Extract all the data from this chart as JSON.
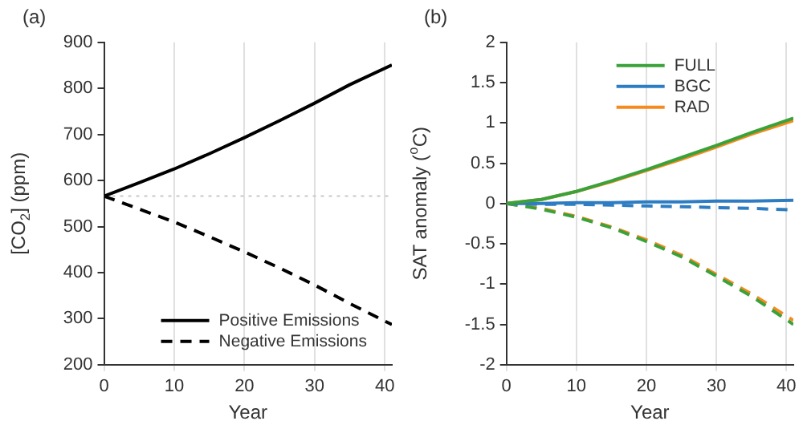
{
  "chart_data": [
    {
      "type": "line",
      "title": "(a)",
      "xlabel": "Year",
      "ylabel": "[CO$_{2}$] (ppm)",
      "x": [
        0,
        5,
        10,
        15,
        20,
        25,
        30,
        35,
        41
      ],
      "xlim": [
        0,
        41
      ],
      "xticks": [
        0,
        10,
        20,
        30,
        40
      ],
      "ylim": [
        200,
        900
      ],
      "yticks": [
        200,
        300,
        400,
        500,
        600,
        700,
        800,
        900
      ],
      "grid": "x",
      "legend": "bottom",
      "marker": "none",
      "series": [
        {
          "name": "Positive Emissions",
          "color": "#000000",
          "line_style": "solid",
          "values": [
            566,
            595,
            625,
            658,
            693,
            730,
            768,
            808,
            851
          ]
        },
        {
          "name": "Negative Emissions",
          "color": "#000000",
          "line_style": "dashed",
          "values": [
            566,
            538,
            510,
            478,
            445,
            410,
            373,
            333,
            287
          ]
        }
      ],
      "ref_lines": [
        {
          "axis": "y",
          "value": 566,
          "color": "#c8c8c8",
          "line_style": "dotted"
        }
      ]
    },
    {
      "type": "line",
      "title": "(b)",
      "xlabel": "Year",
      "ylabel": "SAT anomaly ($^{o}$C)",
      "x": [
        0,
        5,
        10,
        15,
        20,
        25,
        30,
        35,
        41
      ],
      "xlim": [
        0,
        41
      ],
      "xticks": [
        0,
        10,
        20,
        30,
        40
      ],
      "ylim": [
        -2,
        2
      ],
      "yticks": [
        -2,
        -1.5,
        -1,
        -0.5,
        0,
        0.5,
        1,
        1.5,
        2
      ],
      "grid": "x",
      "legend": "top",
      "marker": "none",
      "series": [
        {
          "name": "FULL",
          "color": "#3aa23a",
          "line_style": "solid",
          "values": [
            0,
            0.05,
            0.15,
            0.28,
            0.42,
            0.57,
            0.72,
            0.88,
            1.06
          ]
        },
        {
          "name": "BGC",
          "color": "#2e7dc2",
          "line_style": "solid",
          "values": [
            0,
            0.0,
            0.01,
            0.01,
            0.02,
            0.02,
            0.03,
            0.03,
            0.04
          ]
        },
        {
          "name": "RAD",
          "color": "#f58a1f",
          "line_style": "solid",
          "values": [
            0,
            0.05,
            0.15,
            0.27,
            0.41,
            0.55,
            0.7,
            0.86,
            1.03
          ]
        },
        {
          "color": "#3aa23a",
          "line_style": "dashed",
          "values": [
            0,
            -0.07,
            -0.17,
            -0.3,
            -0.47,
            -0.66,
            -0.9,
            -1.15,
            -1.5
          ]
        },
        {
          "color": "#2e7dc2",
          "line_style": "dashed",
          "values": [
            0,
            -0.01,
            -0.01,
            -0.02,
            -0.03,
            -0.04,
            -0.05,
            -0.06,
            -0.08
          ]
        },
        {
          "color": "#f58a1f",
          "line_style": "dashed",
          "values": [
            0,
            -0.06,
            -0.16,
            -0.29,
            -0.45,
            -0.64,
            -0.88,
            -1.12,
            -1.45
          ]
        }
      ]
    }
  ]
}
